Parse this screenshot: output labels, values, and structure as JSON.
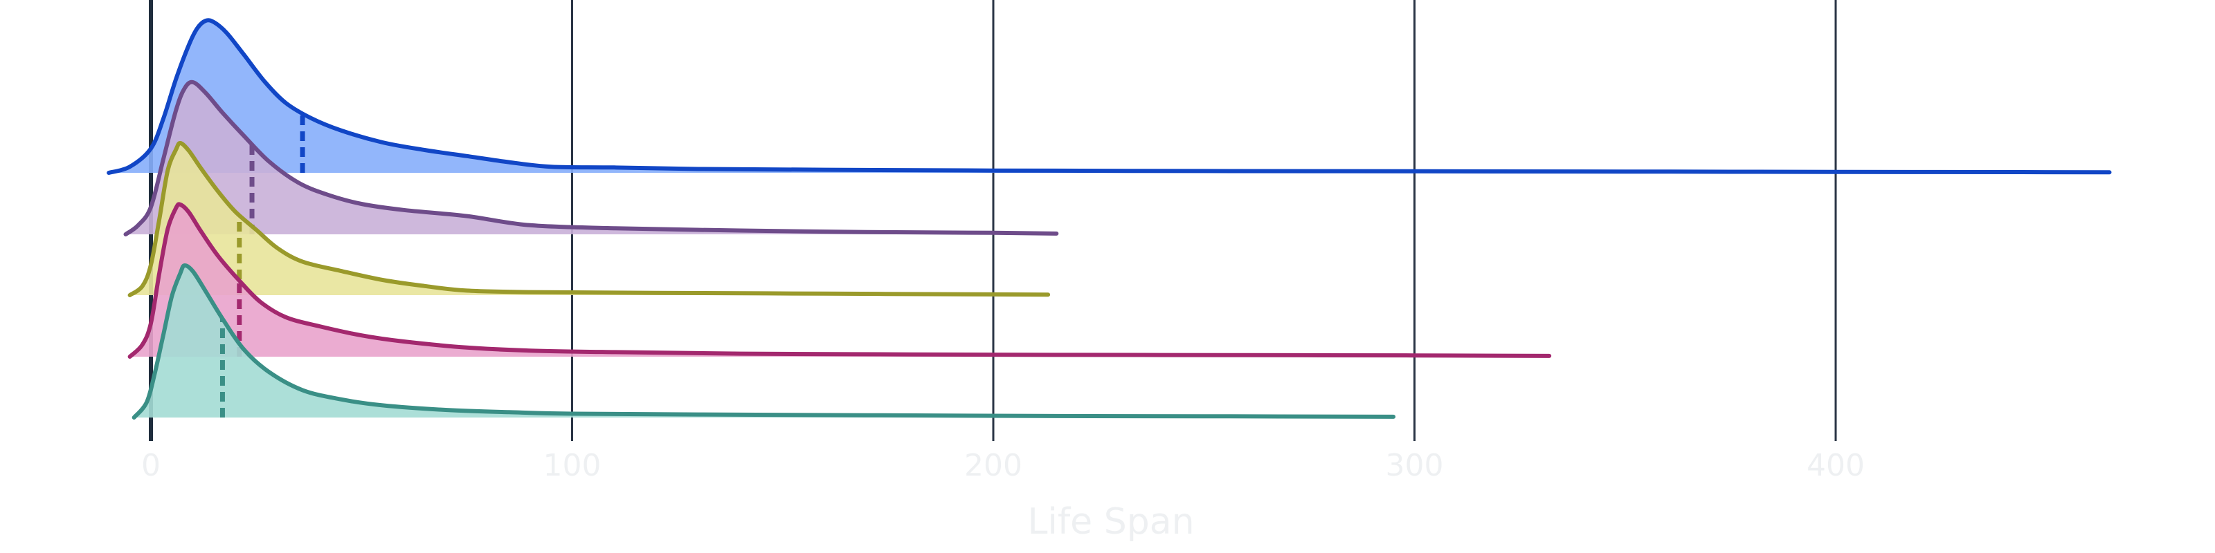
{
  "chart_data": {
    "type": "area",
    "title": "",
    "xlabel": "Life Span",
    "ylabel": "",
    "xlim": [
      -10,
      478
    ],
    "x_ticks": [
      0,
      100,
      200,
      300,
      400
    ],
    "x_tick_labels": [
      "0",
      "100",
      "200",
      "300",
      "400"
    ],
    "grid": "vertical lines at x ticks",
    "legend": "none",
    "zero_line_color": "#1f2d3d",
    "grid_color": "#2a3445",
    "series": [
      {
        "color": "#1146c6",
        "fill": "#86aefb",
        "median": 36,
        "points": [
          [
            -10,
            0
          ],
          [
            -5,
            0.04
          ],
          [
            0,
            0.16
          ],
          [
            3,
            0.36
          ],
          [
            6,
            0.62
          ],
          [
            9,
            0.84
          ],
          [
            11,
            0.95
          ],
          [
            13,
            1.0
          ],
          [
            15,
            0.99
          ],
          [
            18,
            0.92
          ],
          [
            22,
            0.78
          ],
          [
            27,
            0.6
          ],
          [
            32,
            0.46
          ],
          [
            38,
            0.36
          ],
          [
            45,
            0.28
          ],
          [
            55,
            0.2
          ],
          [
            65,
            0.15
          ],
          [
            75,
            0.11
          ],
          [
            85,
            0.07
          ],
          [
            95,
            0.04
          ],
          [
            110,
            0.035
          ],
          [
            130,
            0.025
          ],
          [
            160,
            0.02
          ],
          [
            200,
            0.015
          ],
          [
            250,
            0.012
          ],
          [
            300,
            0.01
          ],
          [
            350,
            0.008
          ],
          [
            400,
            0.006
          ],
          [
            450,
            0.004
          ],
          [
            465,
            0.003
          ]
        ]
      },
      {
        "color": "#6e4c8a",
        "fill": "#c9b0d8",
        "median": 24,
        "points": [
          [
            -6,
            0
          ],
          [
            -3,
            0.06
          ],
          [
            0,
            0.18
          ],
          [
            3,
            0.5
          ],
          [
            6,
            0.82
          ],
          [
            8,
            0.96
          ],
          [
            10,
            1.0
          ],
          [
            13,
            0.93
          ],
          [
            17,
            0.8
          ],
          [
            22,
            0.65
          ],
          [
            28,
            0.48
          ],
          [
            35,
            0.34
          ],
          [
            42,
            0.26
          ],
          [
            50,
            0.2
          ],
          [
            60,
            0.16
          ],
          [
            75,
            0.12
          ],
          [
            90,
            0.06
          ],
          [
            110,
            0.04
          ],
          [
            140,
            0.025
          ],
          [
            170,
            0.015
          ],
          [
            200,
            0.01
          ],
          [
            215,
            0.005
          ]
        ]
      },
      {
        "color": "#9a9a2b",
        "fill": "#e8e49a",
        "median": 21,
        "points": [
          [
            -5,
            0
          ],
          [
            -2,
            0.06
          ],
          [
            0,
            0.2
          ],
          [
            2,
            0.5
          ],
          [
            4,
            0.82
          ],
          [
            6,
            0.96
          ],
          [
            7,
            1.0
          ],
          [
            9,
            0.95
          ],
          [
            12,
            0.83
          ],
          [
            16,
            0.68
          ],
          [
            20,
            0.55
          ],
          [
            25,
            0.43
          ],
          [
            30,
            0.31
          ],
          [
            36,
            0.22
          ],
          [
            45,
            0.16
          ],
          [
            55,
            0.1
          ],
          [
            65,
            0.06
          ],
          [
            75,
            0.03
          ],
          [
            90,
            0.02
          ],
          [
            120,
            0.015
          ],
          [
            160,
            0.01
          ],
          [
            200,
            0.005
          ],
          [
            213,
            0.003
          ]
        ]
      },
      {
        "color": "#a3286e",
        "fill": "#e9a3cc",
        "median": 21,
        "points": [
          [
            -5,
            0
          ],
          [
            -2,
            0.08
          ],
          [
            0,
            0.22
          ],
          [
            2,
            0.55
          ],
          [
            4,
            0.84
          ],
          [
            6,
            0.98
          ],
          [
            7,
            1.0
          ],
          [
            9,
            0.95
          ],
          [
            12,
            0.82
          ],
          [
            16,
            0.66
          ],
          [
            21,
            0.5
          ],
          [
            26,
            0.36
          ],
          [
            32,
            0.26
          ],
          [
            40,
            0.2
          ],
          [
            50,
            0.14
          ],
          [
            60,
            0.1
          ],
          [
            75,
            0.06
          ],
          [
            90,
            0.04
          ],
          [
            110,
            0.03
          ],
          [
            140,
            0.02
          ],
          [
            180,
            0.015
          ],
          [
            220,
            0.012
          ],
          [
            260,
            0.01
          ],
          [
            300,
            0.008
          ],
          [
            332,
            0.005
          ]
        ]
      },
      {
        "color": "#3a8f86",
        "fill": "#a3dcd4",
        "median": 17,
        "points": [
          [
            -4,
            0
          ],
          [
            -1,
            0.1
          ],
          [
            1,
            0.3
          ],
          [
            3,
            0.55
          ],
          [
            5,
            0.8
          ],
          [
            7,
            0.95
          ],
          [
            8,
            1.0
          ],
          [
            10,
            0.96
          ],
          [
            13,
            0.83
          ],
          [
            17,
            0.65
          ],
          [
            22,
            0.45
          ],
          [
            28,
            0.3
          ],
          [
            36,
            0.18
          ],
          [
            45,
            0.12
          ],
          [
            55,
            0.08
          ],
          [
            70,
            0.05
          ],
          [
            85,
            0.035
          ],
          [
            100,
            0.025
          ],
          [
            130,
            0.02
          ],
          [
            170,
            0.015
          ],
          [
            210,
            0.01
          ],
          [
            250,
            0.008
          ],
          [
            295,
            0.005
          ]
        ]
      }
    ]
  }
}
